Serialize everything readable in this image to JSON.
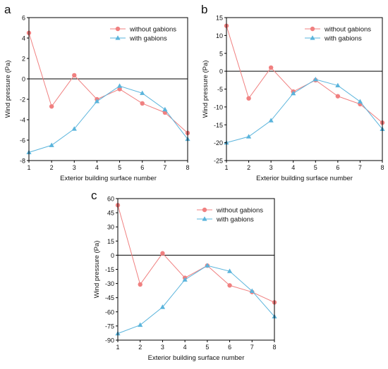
{
  "colors": {
    "without": "#f08080",
    "with": "#5ab4dc",
    "axis": "#000000",
    "zero_line": "#000000"
  },
  "chart_data": [
    {
      "panel": "a",
      "type": "line",
      "xlabel": "Exterior building surface number",
      "ylabel": "Wind pressure (Pa)",
      "x": [
        1,
        2,
        3,
        4,
        5,
        6,
        7,
        8
      ],
      "xlim": [
        1,
        8
      ],
      "ylim": [
        -8,
        6
      ],
      "yticks": [
        -8,
        -6,
        -4,
        -2,
        0,
        2,
        4,
        6
      ],
      "legend": "top-right",
      "series": [
        {
          "name": "without gabions",
          "marker": "circle",
          "values": [
            4.5,
            -2.7,
            0.35,
            -2.0,
            -1.0,
            -2.4,
            -3.3,
            -5.3
          ]
        },
        {
          "name": "with gabions",
          "marker": "triangle",
          "values": [
            -7.2,
            -6.5,
            -4.9,
            -2.2,
            -0.7,
            -1.4,
            -3.0,
            -5.9
          ]
        }
      ]
    },
    {
      "panel": "b",
      "type": "line",
      "xlabel": "Exterior building surface number",
      "ylabel": "Wind pressure (Pa)",
      "x": [
        1,
        2,
        3,
        4,
        5,
        6,
        7,
        8
      ],
      "xlim": [
        1,
        8
      ],
      "ylim": [
        -25,
        15
      ],
      "yticks": [
        -25,
        -20,
        -15,
        -10,
        -5,
        0,
        5,
        10,
        15
      ],
      "legend": "top-right",
      "series": [
        {
          "name": "without gabions",
          "marker": "circle",
          "values": [
            12.7,
            -7.6,
            1.0,
            -5.7,
            -2.5,
            -7.0,
            -9.2,
            -14.4
          ]
        },
        {
          "name": "with gabions",
          "marker": "triangle",
          "values": [
            -20.0,
            -18.3,
            -13.8,
            -6.2,
            -2.3,
            -4.0,
            -8.5,
            -16.2
          ]
        }
      ]
    },
    {
      "panel": "c",
      "type": "line",
      "xlabel": "Exterior building surface number",
      "ylabel": "Wind pressure (Pa)",
      "x": [
        1,
        2,
        3,
        4,
        5,
        6,
        7,
        8
      ],
      "xlim": [
        1,
        8
      ],
      "ylim": [
        -90,
        60
      ],
      "yticks": [
        -90,
        -75,
        -60,
        -45,
        -30,
        -15,
        0,
        15,
        30,
        45,
        60
      ],
      "legend": "top-right",
      "series": [
        {
          "name": "without gabions",
          "marker": "circle",
          "values": [
            53,
            -31,
            2,
            -24,
            -11,
            -32,
            -39,
            -50
          ]
        },
        {
          "name": "with gabions",
          "marker": "triangle",
          "values": [
            -83,
            -74,
            -55,
            -26,
            -11,
            -17,
            -38,
            -65
          ]
        }
      ]
    }
  ]
}
